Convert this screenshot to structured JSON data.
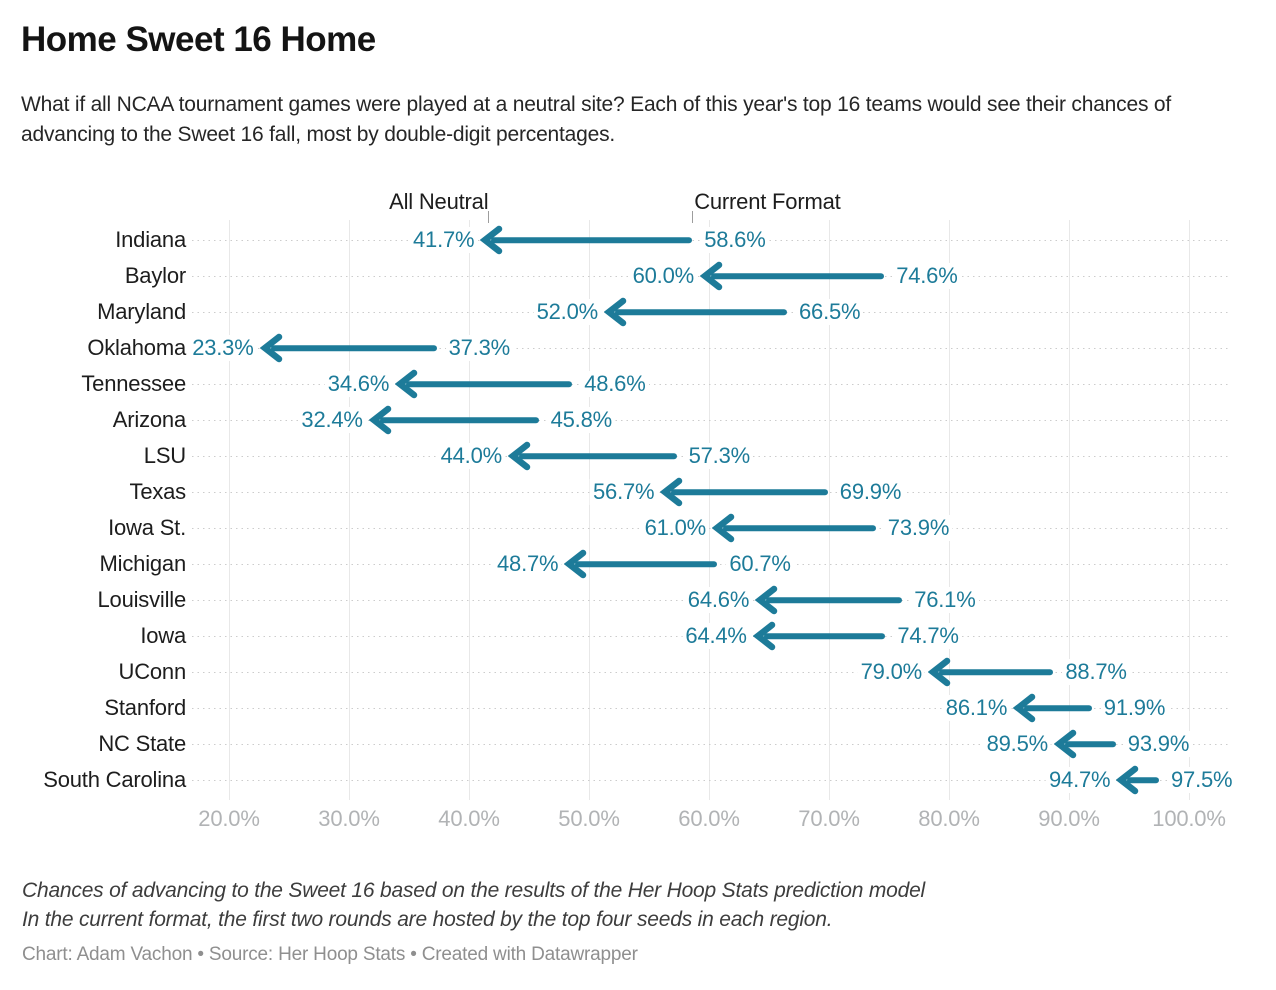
{
  "header": {
    "title": "Home Sweet 16 Home",
    "description": "What if all NCAA tournament games were played at a neutral site? Each of this year's top 16 teams would see their chances of advancing to the Sweet 16 fall, most by double-digit percentages."
  },
  "colors": {
    "accent": "#1d7b99",
    "gridline": "#e8e8e8",
    "axis_text": "#b1b3b5",
    "text": "#1d1d1d"
  },
  "annotations": {
    "all_neutral_label": "All Neutral",
    "current_format_label": "Current Format"
  },
  "chart_data": {
    "type": "arrow",
    "title": "Home Sweet 16 Home",
    "categories": [
      "Indiana",
      "Baylor",
      "Maryland",
      "Oklahoma",
      "Tennessee",
      "Arizona",
      "LSU",
      "Texas",
      "Iowa St.",
      "Michigan",
      "Louisville",
      "Iowa",
      "UConn",
      "Stanford",
      "NC State",
      "South Carolina"
    ],
    "series": [
      {
        "name": "All Neutral",
        "values": [
          41.7,
          60.0,
          52.0,
          23.3,
          34.6,
          32.4,
          44.0,
          56.7,
          61.0,
          48.7,
          64.6,
          64.4,
          79.0,
          86.1,
          89.5,
          94.7
        ]
      },
      {
        "name": "Current Format",
        "values": [
          58.6,
          74.6,
          66.5,
          37.3,
          48.6,
          45.8,
          57.3,
          69.9,
          73.9,
          60.7,
          76.1,
          74.7,
          88.7,
          91.9,
          93.9,
          97.5
        ]
      }
    ],
    "arrow_direction": "from Current Format (right) to All Neutral (left)",
    "value_suffix": "%",
    "xlim": [
      20,
      100
    ],
    "x_ticks": [
      "20.0%",
      "30.0%",
      "40.0%",
      "50.0%",
      "60.0%",
      "70.0%",
      "80.0%",
      "90.0%",
      "100.0%"
    ],
    "grid": "vertical gridlines on, dotted row leader lines",
    "legend_position": "inline column headers above first row"
  },
  "footer": {
    "note_line1": "Chances of advancing to the Sweet 16 based on the results of the Her Hoop Stats prediction model",
    "note_line2": "In the current format, the first two rounds are hosted by the top four seeds in each region.",
    "credit": "Chart: Adam Vachon • Source: Her Hoop Stats • Created with Datawrapper"
  }
}
